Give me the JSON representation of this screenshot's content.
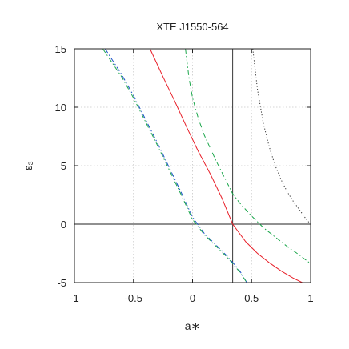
{
  "chart_data": {
    "type": "line",
    "title": "XTE J1550-564",
    "xlabel": "a∗",
    "ylabel": "ε₃",
    "xlim": [
      -1,
      1
    ],
    "ylim": [
      -5,
      15
    ],
    "x_ticks": [
      "-1",
      "-0.5",
      "0",
      "0.5",
      "1"
    ],
    "y_ticks": [
      "-5",
      "0",
      "5",
      "10",
      "15"
    ],
    "grid": true,
    "reference_lines": {
      "x": 0.34,
      "y": 0
    },
    "series": [
      {
        "style": "solid",
        "color": "#e8202a",
        "x": [
          -0.36,
          -0.25,
          -0.15,
          -0.05,
          0.05,
          0.15,
          0.25,
          0.34,
          0.45,
          0.55,
          0.65,
          0.75,
          0.85,
          0.93
        ],
        "y": [
          15,
          12.6,
          10.5,
          8.3,
          6.2,
          4.3,
          2.2,
          0,
          -1.5,
          -2.5,
          -3.3,
          -4.0,
          -4.6,
          -5
        ]
      },
      {
        "style": "dashed",
        "color": "#1c52c8",
        "x": [
          -0.74,
          -0.6,
          -0.5,
          -0.4,
          -0.3,
          -0.2,
          -0.1,
          0.0,
          0.1,
          0.2,
          0.3,
          0.4,
          0.46
        ],
        "y": [
          15,
          12.8,
          11.0,
          9.0,
          7.0,
          4.9,
          2.8,
          0.6,
          -0.8,
          -1.8,
          -2.8,
          -4.0,
          -5
        ]
      },
      {
        "style": "dashed",
        "color": "#1aa64a",
        "x": [
          -0.76,
          -0.6,
          -0.5,
          -0.4,
          -0.3,
          -0.2,
          -0.1,
          0.0,
          0.1,
          0.2,
          0.3,
          0.4,
          0.46
        ],
        "y": [
          15,
          12.6,
          10.8,
          8.8,
          6.8,
          4.7,
          2.6,
          0.4,
          -0.9,
          -1.9,
          -2.9,
          -4.1,
          -5
        ]
      },
      {
        "style": "dashed",
        "color": "#1aa64a",
        "x": [
          -0.06,
          -0.03,
          0.0,
          0.05,
          0.1,
          0.2,
          0.3,
          0.34,
          0.4,
          0.5,
          0.6,
          0.7,
          0.8,
          0.9,
          0.99
        ],
        "y": [
          15,
          12.5,
          10.8,
          9.0,
          7.6,
          5.4,
          3.4,
          2.6,
          1.8,
          0.7,
          -0.3,
          -1.1,
          -1.9,
          -2.6,
          -3.3
        ]
      },
      {
        "style": "dotted",
        "color": "#333333",
        "x": [
          0.51,
          0.55,
          0.6,
          0.65,
          0.7,
          0.75,
          0.8,
          0.85,
          0.9,
          0.95,
          0.99
        ],
        "y": [
          15,
          11.5,
          8.6,
          6.6,
          5.0,
          3.8,
          2.8,
          2.0,
          1.3,
          0.6,
          0.1
        ]
      }
    ]
  }
}
